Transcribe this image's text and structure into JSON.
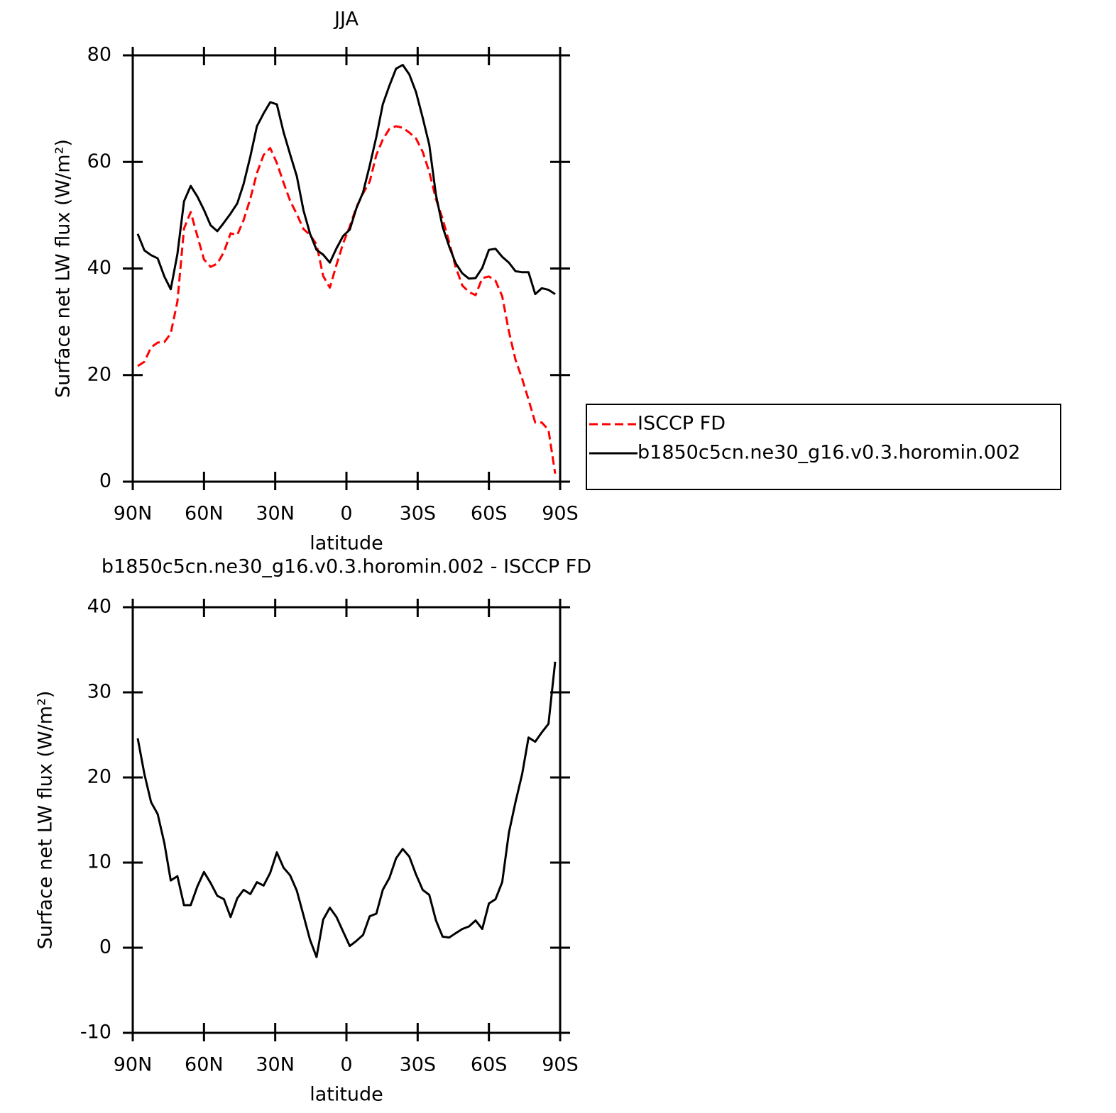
{
  "chart_data": [
    {
      "type": "line",
      "title": "JJA",
      "xlabel": "latitude",
      "ylabel": "Surface net LW flux (W/m²)",
      "x": [
        87.9,
        85.1,
        82.3,
        79.5,
        76.7,
        74.0,
        71.2,
        68.4,
        65.6,
        62.8,
        60.0,
        57.2,
        54.4,
        51.6,
        48.8,
        46.0,
        43.3,
        40.5,
        37.7,
        34.9,
        32.1,
        29.3,
        26.5,
        23.7,
        20.9,
        18.1,
        15.3,
        12.6,
        9.8,
        7.0,
        4.2,
        1.4,
        -1.4,
        -4.2,
        -7.0,
        -9.8,
        -12.6,
        -15.3,
        -18.1,
        -20.9,
        -23.7,
        -26.5,
        -29.3,
        -32.1,
        -34.9,
        -37.7,
        -40.5,
        -43.3,
        -46.0,
        -48.8,
        -51.6,
        -54.4,
        -57.2,
        -60.0,
        -62.8,
        -65.6,
        -68.4,
        -71.2,
        -74.0,
        -76.7,
        -79.5,
        -82.3,
        -85.1,
        -87.9
      ],
      "series": [
        {
          "name": "ISCCP FD",
          "color": "#ff0000",
          "linestyle": "dashed",
          "values": [
            21.7,
            22.5,
            25.2,
            26.1,
            26.2,
            27.8,
            33.8,
            47.5,
            50.6,
            46.1,
            41.7,
            40.3,
            40.9,
            43.1,
            46.6,
            46.3,
            49.1,
            53.1,
            57.9,
            61.3,
            62.6,
            59.8,
            56.1,
            52.7,
            50.2,
            47.4,
            46.3,
            44.5,
            38.6,
            36.4,
            40.7,
            44.7,
            47.9,
            51.5,
            54.1,
            56.3,
            61.3,
            64.2,
            66.2,
            66.7,
            66.4,
            65.5,
            64.4,
            61.9,
            58.1,
            53.0,
            49.3,
            44.9,
            40.3,
            36.8,
            35.6,
            35.0,
            38.2,
            38.5,
            37.7,
            34.8,
            28.2,
            22.9,
            19.3,
            15.4,
            11.1,
            11.1,
            9.7,
            1.5
          ]
        },
        {
          "name": "b1850c5cn.ne30_g16.v0.3.horomin.002",
          "color": "#000000",
          "linestyle": "solid",
          "values": [
            46.5,
            43.4,
            42.5,
            41.9,
            38.5,
            36.1,
            42.7,
            52.6,
            55.5,
            53.5,
            51.0,
            48.1,
            47.0,
            48.6,
            50.3,
            52.2,
            55.9,
            61.0,
            66.7,
            69.1,
            71.2,
            70.8,
            65.6,
            61.4,
            57.3,
            50.9,
            46.5,
            43.5,
            42.6,
            41.1,
            43.8,
            46.1,
            47.3,
            51.3,
            54.3,
            59.3,
            64.7,
            70.8,
            74.3,
            77.5,
            78.2,
            76.4,
            73.1,
            68.3,
            63.2,
            53.8,
            47.8,
            44.1,
            41.0,
            39.1,
            38.1,
            38.2,
            40.1,
            43.5,
            43.7,
            42.2,
            41.1,
            39.5,
            39.3,
            39.3,
            35.2,
            36.3,
            36.0,
            35.2
          ]
        }
      ],
      "xlim": [
        90,
        -90
      ],
      "xticks": [
        {
          "value": 90,
          "label": "90N"
        },
        {
          "value": 60,
          "label": "60N"
        },
        {
          "value": 30,
          "label": "30N"
        },
        0,
        {
          "value": -30,
          "label": "30S"
        },
        {
          "value": -60,
          "label": "60S"
        },
        {
          "value": -90,
          "label": "90S"
        }
      ],
      "ylim": [
        0,
        80
      ],
      "yticks": [
        0,
        20,
        40,
        60,
        80
      ],
      "legend": "right"
    },
    {
      "type": "line",
      "title": "b1850c5cn.ne30_g16.v0.3.horomin.002 - ISCCP FD",
      "xlabel": "latitude",
      "ylabel": "Surface net LW flux (W/m²)",
      "x": [
        87.9,
        85.1,
        82.3,
        79.5,
        76.7,
        74.0,
        71.2,
        68.4,
        65.6,
        62.8,
        60.0,
        57.2,
        54.4,
        51.6,
        48.8,
        46.0,
        43.3,
        40.5,
        37.7,
        34.9,
        32.1,
        29.3,
        26.5,
        23.7,
        20.9,
        18.1,
        15.3,
        12.6,
        9.8,
        7.0,
        4.2,
        1.4,
        -1.4,
        -4.2,
        -7.0,
        -9.8,
        -12.6,
        -15.3,
        -18.1,
        -20.9,
        -23.7,
        -26.5,
        -29.3,
        -32.1,
        -34.9,
        -37.7,
        -40.5,
        -43.3,
        -46.0,
        -48.8,
        -51.6,
        -54.4,
        -57.2,
        -60.0,
        -62.8,
        -65.6,
        -68.4,
        -71.2,
        -74.0,
        -76.7,
        -79.5,
        -82.3,
        -85.1,
        -87.9
      ],
      "values": [
        24.6,
        20.4,
        17.1,
        15.7,
        12.3,
        7.9,
        8.4,
        5.0,
        5.0,
        7.2,
        8.9,
        7.6,
        6.1,
        5.7,
        3.6,
        5.8,
        6.8,
        6.3,
        7.7,
        7.3,
        8.8,
        11.2,
        9.4,
        8.5,
        6.7,
        3.8,
        0.9,
        -1.1,
        3.3,
        4.7,
        3.6,
        1.9,
        0.2,
        0.8,
        1.5,
        3.7,
        4.0,
        6.8,
        8.2,
        10.5,
        11.6,
        10.7,
        8.6,
        6.8,
        6.2,
        3.2,
        1.3,
        1.2,
        1.7,
        2.2,
        2.5,
        3.2,
        2.2,
        5.2,
        5.7,
        7.7,
        13.5,
        17.1,
        20.4,
        24.7,
        24.2,
        25.3,
        26.3,
        33.6
      ],
      "color": "#000000",
      "xlim": [
        90,
        -90
      ],
      "xticks": [
        {
          "value": 90,
          "label": "90N"
        },
        {
          "value": 60,
          "label": "60N"
        },
        {
          "value": 30,
          "label": "30N"
        },
        0,
        {
          "value": -30,
          "label": "30S"
        },
        {
          "value": -60,
          "label": "60S"
        },
        {
          "value": -90,
          "label": "90S"
        }
      ],
      "ylim": [
        -10,
        40
      ],
      "yticks": [
        -10,
        0,
        10,
        20,
        30,
        40
      ]
    }
  ]
}
